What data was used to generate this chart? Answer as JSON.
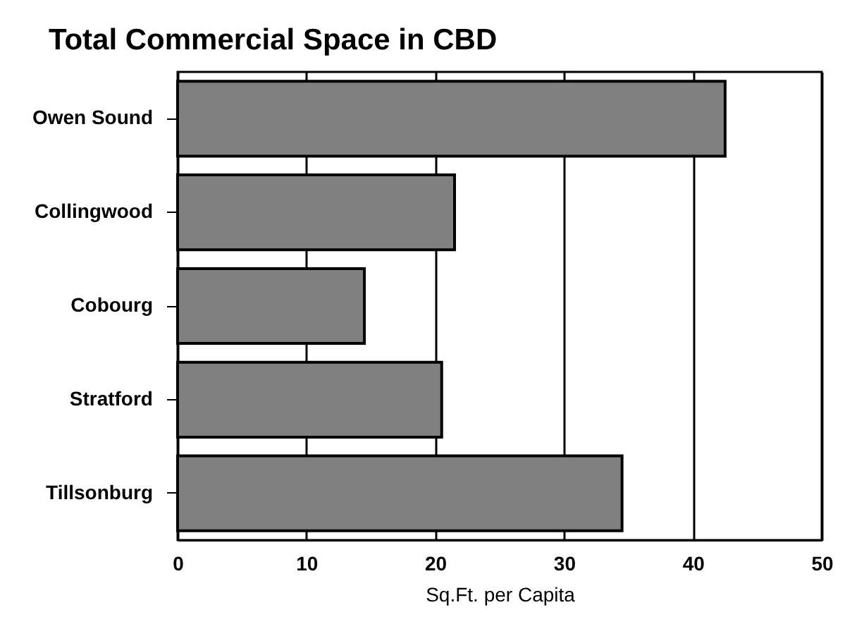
{
  "chart_data": {
    "type": "bar",
    "orientation": "horizontal",
    "title": "Total Commercial Space in CBD",
    "xlabel": "Sq.Ft. per Capita",
    "categories": [
      "Owen Sound",
      "Collingwood",
      "Cobourg",
      "Stratford",
      "Tillsonburg"
    ],
    "values": [
      42.5,
      21.5,
      14.5,
      20.5,
      34.5
    ],
    "color": "#808080",
    "xlim": [
      0,
      50
    ],
    "xticks": [
      0,
      10,
      20,
      30,
      40,
      50
    ],
    "grid": "x"
  }
}
